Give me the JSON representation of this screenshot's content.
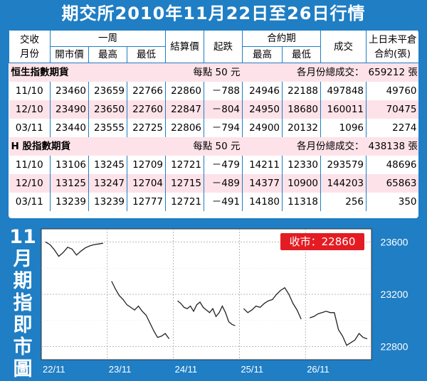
{
  "title": "期交所2010年11月22日至26日行情",
  "header": {
    "contract_month": [
      "交收",
      "月份"
    ],
    "week": "一周",
    "open": "開市價",
    "high": "最高",
    "low": "最低",
    "settle": "結算價",
    "change": "起跌",
    "contract_period": "合約期",
    "cp_high": "最高",
    "cp_low": "最低",
    "volume": "成交",
    "open_interest": [
      "上日未平倉",
      "合約(張)"
    ]
  },
  "sections": [
    {
      "name": "恒生指數期貨",
      "per_point": "每點 50 元",
      "total_label": "各月份總成交：",
      "total": "659212 張",
      "rows": [
        {
          "month": "11/10",
          "open": "23460",
          "high": "23659",
          "low": "22766",
          "settle": "22860",
          "change": "－788",
          "cp_high": "24946",
          "cp_low": "22188",
          "volume": "497848",
          "oi": "49760"
        },
        {
          "month": "12/10",
          "open": "23490",
          "high": "23650",
          "low": "22760",
          "settle": "22847",
          "change": "－804",
          "cp_high": "24950",
          "cp_low": "18680",
          "volume": "160011",
          "oi": "70475"
        },
        {
          "month": "03/11",
          "open": "23440",
          "high": "23555",
          "low": "22725",
          "settle": "22806",
          "change": "－794",
          "cp_high": "24900",
          "cp_low": "20132",
          "volume": "1096",
          "oi": "2274"
        }
      ]
    },
    {
      "name": "H 股指數期貨",
      "per_point": "每點 50 元",
      "total_label": "各月份總成交：",
      "total": "438138 張",
      "rows": [
        {
          "month": "11/10",
          "open": "13106",
          "high": "13245",
          "low": "12709",
          "settle": "12721",
          "change": "－479",
          "cp_high": "14211",
          "cp_low": "12330",
          "volume": "293579",
          "oi": "48696"
        },
        {
          "month": "12/10",
          "open": "13125",
          "high": "13247",
          "low": "12704",
          "settle": "12715",
          "change": "－489",
          "cp_high": "14377",
          "cp_low": "10900",
          "volume": "144203",
          "oi": "65863"
        },
        {
          "month": "03/11",
          "open": "13239",
          "high": "13239",
          "low": "12777",
          "settle": "12721",
          "change": "－491",
          "cp_high": "14180",
          "cp_low": "11318",
          "volume": "256",
          "oi": "350"
        }
      ]
    }
  ],
  "chart_title": [
    "11",
    "月",
    "期",
    "指",
    "即",
    "市",
    "圖"
  ],
  "chart_data": {
    "type": "line",
    "title": "11月期指即市圖",
    "close_label": "收市：22860",
    "ylim": [
      22700,
      23700
    ],
    "yticks": [
      23600,
      23200,
      22800
    ],
    "categories": [
      "22/11",
      "23/11",
      "24/11",
      "25/11",
      "26/11"
    ],
    "grid": true,
    "series": [
      {
        "name": "",
        "days": [
          [
            23600,
            23580,
            23540,
            23490,
            23520,
            23560,
            23545,
            23500,
            23530,
            23555,
            23570,
            23580,
            23585,
            23590
          ],
          [
            23300,
            23240,
            23190,
            23160,
            23120,
            23100,
            23080,
            23110,
            23070,
            23040,
            22980,
            22920,
            22870,
            22880,
            22900,
            22860
          ],
          [
            23150,
            23130,
            23100,
            23090,
            23110,
            23070,
            23120,
            23140,
            23100,
            23080,
            23060,
            23090,
            23030,
            23060,
            23110,
            23060,
            22990,
            22970,
            22960
          ],
          [
            23090,
            23060,
            23080,
            23110,
            23100,
            23130,
            23150,
            23160,
            23200,
            23230,
            23250,
            23200,
            23130,
            23080,
            23010
          ],
          [
            23020,
            23030,
            23050,
            23060,
            23070,
            23060,
            23060,
            22930,
            22880,
            22810,
            22830,
            22850,
            22900,
            22870,
            22860
          ]
        ]
      }
    ]
  }
}
